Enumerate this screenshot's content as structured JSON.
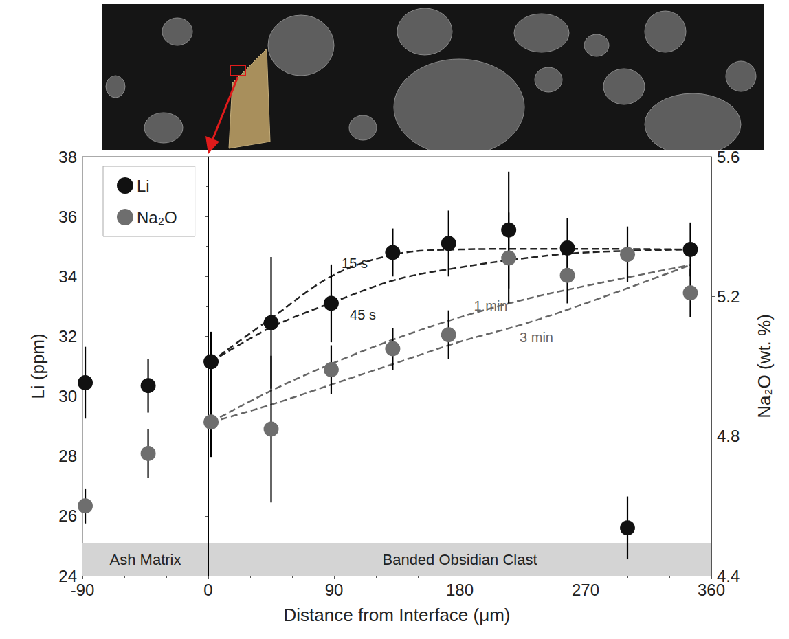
{
  "chart_data": {
    "type": "scatter",
    "x_label": "Distance from Interface (μm)",
    "y_label": "Li (ppm)",
    "y2_label": "Na₂O (wt. %)",
    "xlim": [
      -90,
      360
    ],
    "xticks": [
      -90,
      0,
      90,
      180,
      270,
      360
    ],
    "ylim": [
      24,
      38
    ],
    "yticks": [
      24,
      26,
      28,
      30,
      32,
      34,
      36,
      38
    ],
    "y2lim": [
      4.4,
      5.6
    ],
    "y2ticks": [
      4.4,
      4.8,
      5.2,
      5.6
    ],
    "legend": "upper left",
    "interface_x": 0,
    "regions": [
      {
        "label": "Ash Matrix",
        "x": [
          -90,
          0
        ]
      },
      {
        "label": "Banded Obsidian Clast",
        "x": [
          0,
          360
        ]
      }
    ],
    "series": [
      {
        "name": "Li",
        "color": "#111111",
        "marker": "circle",
        "axis": "y",
        "x": [
          -88,
          -43,
          2,
          45,
          88,
          132,
          172,
          215,
          257,
          300,
          345
        ],
        "values": [
          30.45,
          30.35,
          31.15,
          32.45,
          33.1,
          34.8,
          35.1,
          35.55,
          34.95,
          25.6,
          34.9
        ],
        "errors": [
          1.2,
          0.9,
          1.0,
          2.2,
          1.3,
          0.8,
          1.1,
          1.95,
          1.0,
          1.05,
          0.9
        ]
      },
      {
        "name": "Na₂O",
        "color": "#6e6e6e",
        "marker": "circle",
        "axis": "y2",
        "x": [
          -88,
          -43,
          2,
          45,
          88,
          132,
          172,
          215,
          257,
          300,
          345
        ],
        "values": [
          4.6,
          4.75,
          4.84,
          4.82,
          4.99,
          5.05,
          5.09,
          5.31,
          5.26,
          5.32,
          5.21
        ],
        "errors": [
          0.05,
          0.07,
          0.1,
          0.21,
          0.07,
          0.06,
          0.07,
          0.13,
          0.08,
          0.08,
          0.07
        ]
      }
    ],
    "models": [
      {
        "name": "15 s",
        "axis": "y",
        "color": "#222222",
        "line_style": "dashed",
        "x": [
          2,
          45,
          90,
          135,
          180,
          225,
          270,
          345
        ],
        "values": [
          31.15,
          32.6,
          34.05,
          34.75,
          34.9,
          34.92,
          34.92,
          34.9
        ]
      },
      {
        "name": "45 s",
        "axis": "y",
        "color": "#222222",
        "line_style": "dashed",
        "x": [
          2,
          45,
          90,
          135,
          180,
          225,
          270,
          345
        ],
        "values": [
          31.15,
          32.3,
          33.15,
          33.9,
          34.3,
          34.6,
          34.8,
          34.9
        ]
      },
      {
        "name": "1 min",
        "axis": "y2",
        "color": "#666666",
        "line_style": "dashed",
        "x": [
          2,
          45,
          90,
          135,
          180,
          225,
          270,
          345
        ],
        "values": [
          4.84,
          4.93,
          5.01,
          5.08,
          5.14,
          5.19,
          5.23,
          5.29
        ]
      },
      {
        "name": "3 min",
        "axis": "y2",
        "color": "#666666",
        "line_style": "dashed",
        "x": [
          2,
          45,
          90,
          135,
          180,
          225,
          270,
          345
        ],
        "values": [
          4.84,
          4.89,
          4.95,
          5.01,
          5.07,
          5.12,
          5.18,
          5.29
        ]
      }
    ]
  }
}
